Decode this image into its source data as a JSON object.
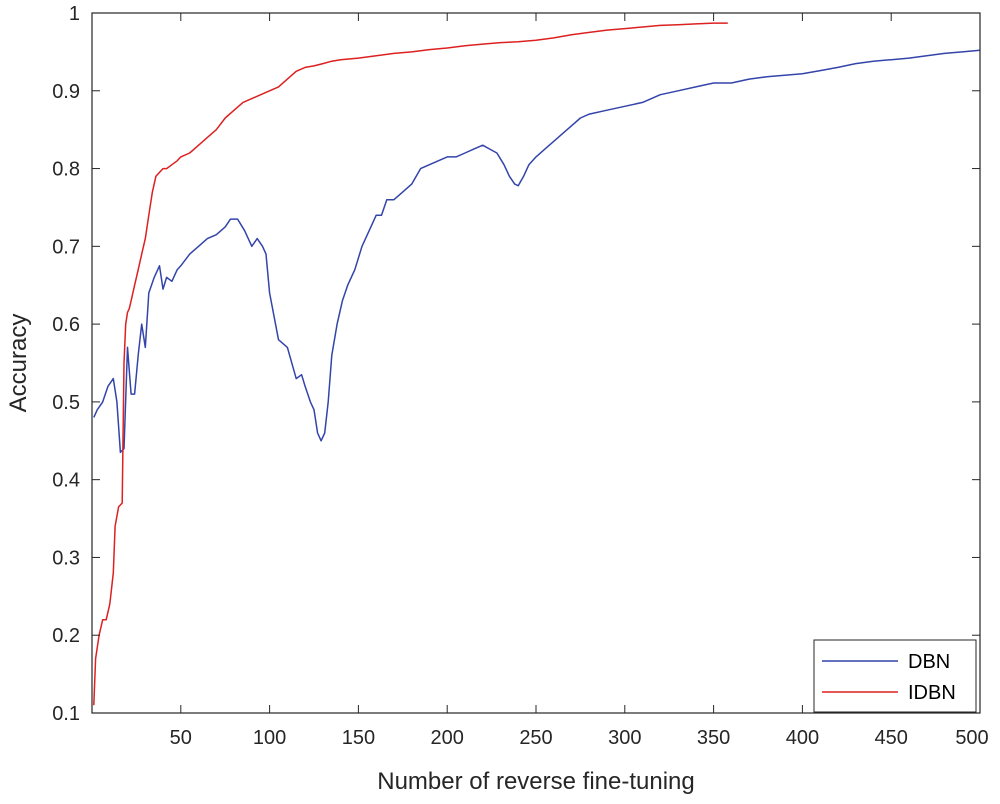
{
  "chart_data": {
    "type": "line",
    "title": "",
    "xlabel": "Number of reverse fine-tuning",
    "ylabel": "Accuracy",
    "xlim": [
      0,
      500
    ],
    "ylim": [
      0.1,
      1
    ],
    "x_ticks": [
      50,
      100,
      150,
      200,
      250,
      300,
      350,
      400,
      450,
      500
    ],
    "x_tick_labels": [
      "50",
      "100",
      "150",
      "200",
      "250",
      "300",
      "350",
      "400",
      "450",
      "500"
    ],
    "y_ticks": [
      0.1,
      0.2,
      0.3,
      0.4,
      0.5,
      0.6,
      0.7,
      0.8,
      0.9,
      1
    ],
    "y_tick_labels": [
      "0.1",
      "0.2",
      "0.3",
      "0.4",
      "0.5",
      "0.6",
      "0.7",
      "0.8",
      "0.9",
      "1"
    ],
    "grid": false,
    "box": true,
    "legend_position": "bottom-right",
    "series": [
      {
        "name": "DBN",
        "color": "#3344aa",
        "x": [
          1,
          3,
          6,
          9,
          12,
          14,
          16,
          18,
          20,
          21,
          22,
          24,
          26,
          28,
          30,
          32,
          35,
          38,
          40,
          42,
          45,
          48,
          50,
          55,
          60,
          65,
          70,
          75,
          78,
          82,
          86,
          90,
          93,
          96,
          98,
          100,
          105,
          110,
          115,
          118,
          120,
          123,
          125,
          127,
          129,
          131,
          133,
          135,
          138,
          141,
          144,
          148,
          152,
          156,
          160,
          163,
          166,
          170,
          175,
          180,
          185,
          190,
          195,
          200,
          205,
          210,
          215,
          220,
          224,
          228,
          232,
          235,
          238,
          240,
          243,
          246,
          250,
          255,
          260,
          265,
          270,
          275,
          280,
          290,
          300,
          310,
          320,
          330,
          340,
          350,
          360,
          370,
          380,
          390,
          400,
          410,
          420,
          430,
          440,
          450,
          460,
          470,
          480,
          490,
          500
        ],
        "y": [
          0.48,
          0.49,
          0.5,
          0.52,
          0.53,
          0.5,
          0.435,
          0.44,
          0.57,
          0.54,
          0.51,
          0.51,
          0.56,
          0.6,
          0.57,
          0.64,
          0.66,
          0.675,
          0.645,
          0.66,
          0.655,
          0.67,
          0.675,
          0.69,
          0.7,
          0.71,
          0.715,
          0.725,
          0.735,
          0.735,
          0.72,
          0.7,
          0.71,
          0.7,
          0.69,
          0.64,
          0.58,
          0.57,
          0.53,
          0.535,
          0.52,
          0.5,
          0.49,
          0.46,
          0.45,
          0.46,
          0.5,
          0.56,
          0.6,
          0.63,
          0.65,
          0.67,
          0.7,
          0.72,
          0.74,
          0.74,
          0.76,
          0.76,
          0.77,
          0.78,
          0.8,
          0.805,
          0.81,
          0.815,
          0.815,
          0.82,
          0.825,
          0.83,
          0.825,
          0.82,
          0.805,
          0.79,
          0.78,
          0.778,
          0.79,
          0.805,
          0.815,
          0.825,
          0.835,
          0.845,
          0.855,
          0.865,
          0.87,
          0.875,
          0.88,
          0.885,
          0.895,
          0.9,
          0.905,
          0.91,
          0.91,
          0.915,
          0.918,
          0.92,
          0.922,
          0.926,
          0.93,
          0.935,
          0.938,
          0.94,
          0.942,
          0.945,
          0.948,
          0.95,
          0.952
        ]
      },
      {
        "name": "IDBN",
        "color": "#dd2020",
        "x": [
          1,
          2,
          4,
          6,
          8,
          10,
          12,
          13,
          15,
          17,
          18,
          19,
          20,
          21,
          22,
          24,
          26,
          28,
          30,
          32,
          34,
          36,
          38,
          40,
          42,
          45,
          48,
          50,
          55,
          60,
          65,
          70,
          75,
          80,
          85,
          90,
          95,
          100,
          105,
          110,
          115,
          120,
          125,
          130,
          135,
          140,
          150,
          160,
          170,
          180,
          190,
          200,
          210,
          220,
          230,
          240,
          250,
          260,
          270,
          280,
          290,
          300,
          310,
          320,
          330,
          340,
          350,
          358
        ],
        "y": [
          0.11,
          0.17,
          0.2,
          0.22,
          0.22,
          0.24,
          0.28,
          0.34,
          0.365,
          0.37,
          0.55,
          0.6,
          0.615,
          0.62,
          0.63,
          0.65,
          0.67,
          0.69,
          0.71,
          0.74,
          0.77,
          0.79,
          0.795,
          0.8,
          0.8,
          0.805,
          0.81,
          0.815,
          0.82,
          0.83,
          0.84,
          0.85,
          0.865,
          0.875,
          0.885,
          0.89,
          0.895,
          0.9,
          0.905,
          0.915,
          0.925,
          0.93,
          0.932,
          0.935,
          0.938,
          0.94,
          0.942,
          0.945,
          0.948,
          0.95,
          0.953,
          0.955,
          0.958,
          0.96,
          0.962,
          0.963,
          0.965,
          0.968,
          0.972,
          0.975,
          0.978,
          0.98,
          0.982,
          0.984,
          0.985,
          0.986,
          0.987,
          0.987
        ]
      }
    ]
  }
}
